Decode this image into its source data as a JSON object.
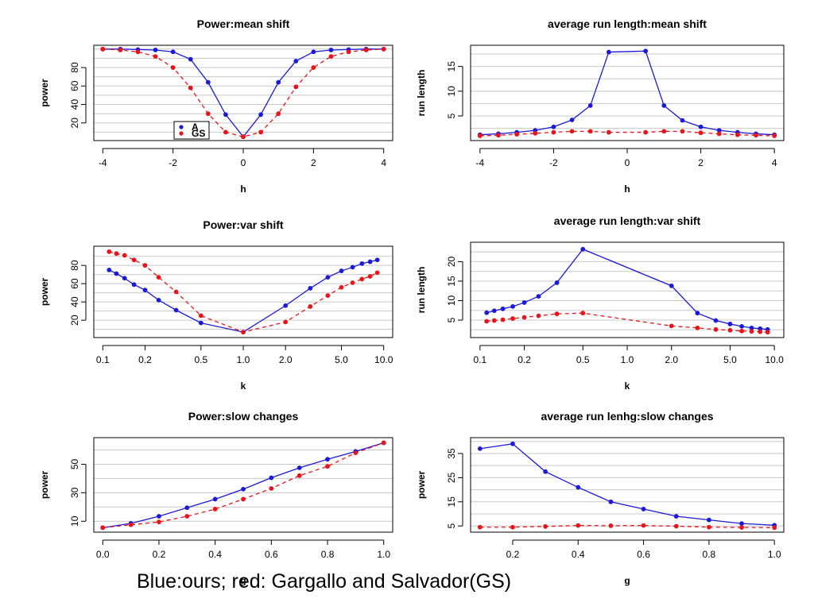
{
  "caption": "Blue:ours; red: Gargallo and Salvador(GS)",
  "colors": {
    "ours": "#1a1ad8",
    "gs": "#e8141a",
    "grid": "#c8c8c8"
  },
  "chart_data": [
    {
      "type": "line",
      "title": "Power:mean shift",
      "xlabel": "h",
      "ylabel": "power",
      "x_scale": "linear",
      "xlim": [
        -4,
        4
      ],
      "ylim": [
        5,
        100
      ],
      "xticks": [
        -4,
        -2,
        0,
        2,
        4
      ],
      "xtick_labels": [
        "-4",
        "-2",
        "0",
        "2",
        "4"
      ],
      "yticks": [
        20,
        40,
        60,
        80
      ],
      "ytick_labels": [
        "20",
        "40",
        "60",
        "80"
      ],
      "grid": true,
      "legend": {
        "position": "bottom-center",
        "entries": [
          "A",
          "GS"
        ]
      },
      "series": [
        {
          "name": "A",
          "x": [
            -4,
            -3.5,
            -3,
            -2.5,
            -2,
            -1.5,
            -1,
            -0.5,
            0,
            0.5,
            1,
            1.5,
            2,
            2.5,
            3,
            3.5,
            4
          ],
          "y": [
            100,
            100,
            99.5,
            99,
            97,
            89,
            64,
            29,
            5,
            29,
            64,
            87,
            97,
            99,
            99.5,
            100,
            100
          ]
        },
        {
          "name": "GS",
          "x": [
            -4,
            -3.5,
            -3,
            -2.5,
            -2,
            -1.5,
            -1,
            -0.5,
            0,
            0.5,
            1,
            1.5,
            2,
            2.5,
            3,
            3.5,
            4
          ],
          "y": [
            100,
            99,
            97,
            92,
            80,
            58,
            30,
            10,
            5,
            10,
            30,
            59,
            80,
            92,
            97,
            99,
            100
          ]
        }
      ]
    },
    {
      "type": "line",
      "title": "average run length:mean shift",
      "xlabel": "h",
      "ylabel": "run length",
      "x_scale": "linear",
      "xlim": [
        -4,
        4
      ],
      "ylim": [
        0.8,
        18.5
      ],
      "xticks": [
        -4,
        -2,
        0,
        2,
        4
      ],
      "xtick_labels": [
        "-4",
        "-2",
        "0",
        "2",
        "4"
      ],
      "yticks": [
        5,
        10,
        15
      ],
      "ytick_labels": [
        "5",
        "10",
        "15"
      ],
      "grid": true,
      "series": [
        {
          "x": [
            -4,
            -3.5,
            -3,
            -2.5,
            -2,
            -1.5,
            -1,
            -0.5,
            0.5,
            1,
            1.5,
            2,
            2.5,
            3,
            3.5,
            4
          ],
          "y": [
            1.2,
            1.4,
            1.7,
            2.1,
            2.8,
            4.2,
            7.1,
            17.9,
            18.1,
            7.1,
            4.1,
            2.8,
            2.1,
            1.7,
            1.4,
            1.2
          ]
        },
        {
          "x": [
            -4,
            -3.5,
            -3,
            -2.5,
            -2,
            -1.5,
            -1,
            -0.5,
            0.5,
            1,
            1.5,
            2,
            2.5,
            3,
            3.5,
            4
          ],
          "y": [
            1.0,
            1.1,
            1.3,
            1.5,
            1.7,
            1.9,
            1.9,
            1.7,
            1.7,
            1.9,
            1.9,
            1.6,
            1.4,
            1.2,
            1.1,
            1.0
          ]
        }
      ]
    },
    {
      "type": "line",
      "title": "Power:var shift",
      "xlabel": "k",
      "ylabel": "power",
      "x_scale": "log",
      "xlim": [
        0.1,
        10
      ],
      "ylim": [
        5,
        97
      ],
      "xticks": [
        0.1,
        0.2,
        0.5,
        1,
        2,
        5,
        10
      ],
      "xtick_labels": [
        "0.1",
        "0.2",
        "0.5",
        "1.0",
        "2.0",
        "5.0",
        "10.0"
      ],
      "yticks": [
        20,
        40,
        60,
        80
      ],
      "ytick_labels": [
        "20",
        "40",
        "60",
        "80"
      ],
      "grid": true,
      "series": [
        {
          "x": [
            0.111,
            0.125,
            0.143,
            0.167,
            0.2,
            0.25,
            0.333,
            0.5,
            1,
            2,
            3,
            4,
            5,
            6,
            7,
            8,
            9
          ],
          "y": [
            75,
            71,
            66,
            59,
            53,
            42,
            31,
            17,
            7,
            36,
            55,
            67,
            74,
            78,
            82,
            84,
            86
          ]
        },
        {
          "x": [
            0.111,
            0.125,
            0.143,
            0.167,
            0.2,
            0.25,
            0.333,
            0.5,
            1,
            2,
            3,
            4,
            5,
            6,
            7,
            8,
            9
          ],
          "y": [
            95,
            93,
            91,
            86,
            80,
            67,
            51,
            25,
            7,
            18,
            35,
            47,
            56,
            61,
            65,
            68,
            72
          ]
        }
      ]
    },
    {
      "type": "line",
      "title": "average run length:var shift",
      "xlabel": "k",
      "ylabel": "run length",
      "x_scale": "log",
      "xlim": [
        0.1,
        10
      ],
      "ylim": [
        1.5,
        24
      ],
      "xticks": [
        0.1,
        0.2,
        0.5,
        1,
        2,
        5,
        10
      ],
      "xtick_labels": [
        "0.1",
        "0.2",
        "0.5",
        "1.0",
        "2.0",
        "5.0",
        "10.0"
      ],
      "yticks": [
        5,
        10,
        15,
        20
      ],
      "ytick_labels": [
        "5",
        "10",
        "15",
        "20"
      ],
      "grid": true,
      "series": [
        {
          "x": [
            0.111,
            0.125,
            0.143,
            0.167,
            0.2,
            0.25,
            0.333,
            0.5,
            2,
            3,
            4,
            5,
            6,
            7,
            8,
            9
          ],
          "y": [
            6.9,
            7.4,
            7.9,
            8.5,
            9.5,
            11.1,
            14.6,
            23.2,
            13.8,
            6.8,
            4.9,
            4.0,
            3.4,
            3.0,
            2.8,
            2.6
          ]
        },
        {
          "x": [
            0.111,
            0.125,
            0.143,
            0.167,
            0.2,
            0.25,
            0.333,
            0.5,
            2,
            3,
            4,
            5,
            6,
            7,
            8,
            9
          ],
          "y": [
            4.7,
            4.9,
            5.1,
            5.4,
            5.7,
            6.1,
            6.6,
            6.8,
            3.5,
            3.0,
            2.6,
            2.4,
            2.2,
            2.1,
            2.0,
            1.9
          ]
        }
      ]
    },
    {
      "type": "line",
      "title": "Power:slow changes",
      "xlabel": "g",
      "ylabel": "power",
      "x_scale": "linear",
      "xlim": [
        0,
        1
      ],
      "ylim": [
        5,
        66
      ],
      "xticks": [
        0,
        0.2,
        0.4,
        0.6,
        0.8,
        1
      ],
      "xtick_labels": [
        "0.0",
        "0.2",
        "0.4",
        "0.6",
        "0.8",
        "1.0"
      ],
      "yticks": [
        10,
        30,
        50
      ],
      "ytick_labels": [
        "10",
        "30",
        "50"
      ],
      "grid": true,
      "series": [
        {
          "x": [
            0,
            0.1,
            0.2,
            0.3,
            0.4,
            0.5,
            0.6,
            0.7,
            0.8,
            0.9,
            1
          ],
          "y": [
            5.5,
            8.5,
            13.5,
            19.5,
            25.5,
            32.5,
            40.5,
            47.5,
            53.5,
            59,
            65
          ]
        },
        {
          "x": [
            0,
            0.1,
            0.2,
            0.3,
            0.4,
            0.5,
            0.6,
            0.7,
            0.8,
            0.9,
            1
          ],
          "y": [
            5.5,
            7.5,
            9.5,
            13.5,
            18.5,
            25.5,
            33,
            42,
            48.5,
            58,
            65
          ]
        }
      ]
    },
    {
      "type": "line",
      "title": "average run lenhg:slow changes",
      "xlabel": "g",
      "ylabel": "power",
      "x_scale": "linear",
      "xlim": [
        0.1,
        1
      ],
      "ylim": [
        4,
        40
      ],
      "xticks": [
        0.2,
        0.4,
        0.6,
        0.8,
        1
      ],
      "xtick_labels": [
        "0.2",
        "0.4",
        "0.6",
        "0.8",
        "1.0"
      ],
      "yticks": [
        5,
        15,
        25,
        35
      ],
      "ytick_labels": [
        "5",
        "15",
        "25",
        "35"
      ],
      "grid": true,
      "series": [
        {
          "x": [
            0.1,
            0.2,
            0.3,
            0.4,
            0.5,
            0.6,
            0.7,
            0.8,
            0.9,
            1
          ],
          "y": [
            37,
            39,
            27.5,
            21,
            15,
            12,
            9,
            7.5,
            6,
            5.3
          ]
        },
        {
          "x": [
            0.1,
            0.2,
            0.3,
            0.4,
            0.5,
            0.6,
            0.7,
            0.8,
            0.9,
            1
          ],
          "y": [
            4.5,
            4.5,
            4.8,
            5.2,
            5.1,
            5.2,
            4.9,
            4.5,
            4.4,
            4.3
          ]
        }
      ]
    }
  ]
}
